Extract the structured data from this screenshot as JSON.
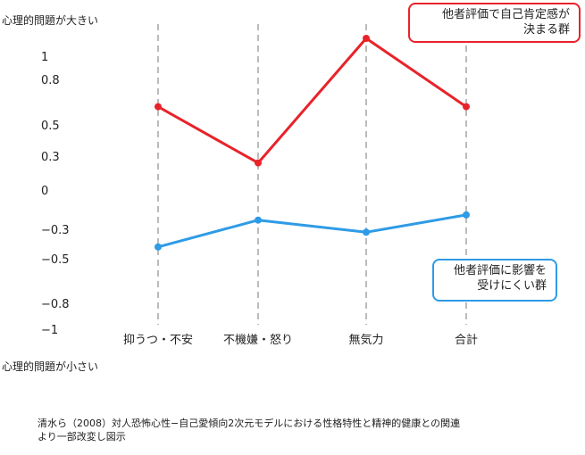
{
  "chart_data": {
    "type": "line",
    "ylabel_top": "心理的問題が大きい",
    "ylabel_bottom": "心理的問題が小さい",
    "categories": [
      "抑うつ・不安",
      "不機嫌・怒り",
      "無気力",
      "合計"
    ],
    "ylim": [
      -1,
      1.15
    ],
    "yticks": [
      {
        "value": 1,
        "label": "1"
      },
      {
        "value": 0.8,
        "label": "0.8"
      },
      {
        "value": 0.5,
        "label": "0.5"
      },
      {
        "value": 0.3,
        "label": "0.3"
      },
      {
        "value": 0,
        "label": "0"
      },
      {
        "value": -0.3,
        "label": "−0.3"
      },
      {
        "value": -0.5,
        "label": "−0.5"
      },
      {
        "value": -0.8,
        "label": "−0.8"
      },
      {
        "value": -1,
        "label": "−1"
      }
    ],
    "grid": "vertical dashed lines at categories",
    "series": [
      {
        "name_lines": [
          "他者評価で自己肯定感が",
          "決まる群"
        ],
        "color": "#e8232a",
        "values": [
          0.62,
          0.24,
          1.1,
          0.62
        ]
      },
      {
        "name_lines": [
          "他者評価に影響を",
          "受けにくい群"
        ],
        "color": "#2e9be6",
        "values": [
          -0.42,
          -0.23,
          -0.32,
          -0.19
        ]
      }
    ]
  },
  "source": {
    "line1": "清水ら（2008）対人恐怖心性−自己愛傾向2次元モデルにおける性格特性と精神的健康との関連",
    "line2": "より一部改変し図示"
  }
}
